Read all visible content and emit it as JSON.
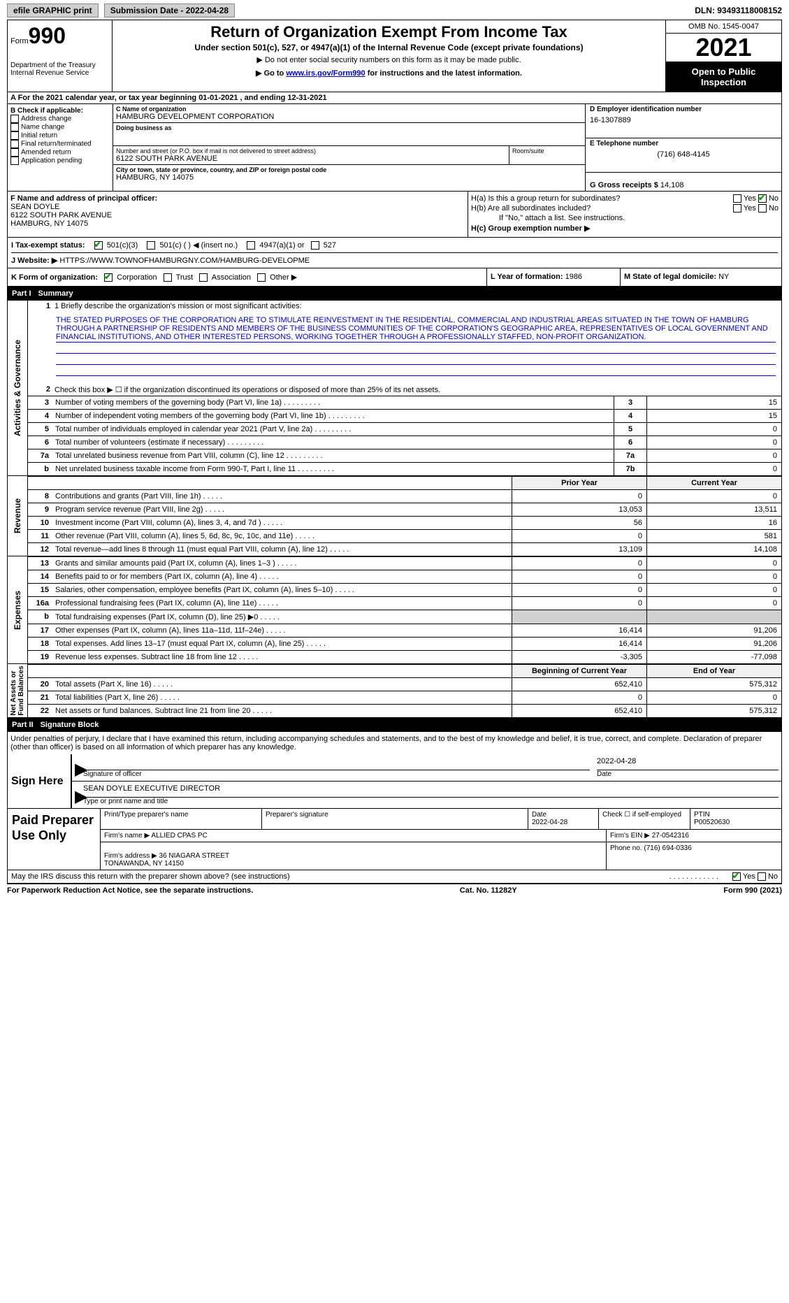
{
  "topbar": {
    "efile": "efile GRAPHIC print",
    "submission": "Submission Date - 2022-04-28",
    "dln_label": "DLN:",
    "dln": "93493118008152"
  },
  "header": {
    "form_prefix": "Form",
    "form_number": "990",
    "dept": "Department of the Treasury\nInternal Revenue Service",
    "title": "Return of Organization Exempt From Income Tax",
    "subtitle": "Under section 501(c), 527, or 4947(a)(1) of the Internal Revenue Code (except private foundations)",
    "note1": "▶ Do not enter social security numbers on this form as it may be made public.",
    "note2_pre": "▶ Go to ",
    "note2_link": "www.irs.gov/Form990",
    "note2_post": " for instructions and the latest information.",
    "omb": "OMB No. 1545-0047",
    "year": "2021",
    "open": "Open to Public\nInspection"
  },
  "line_a": "A For the 2021 calendar year, or tax year beginning 01-01-2021    , and ending 12-31-2021",
  "block_b": {
    "title": "B Check if applicable:",
    "items": [
      "Address change",
      "Name change",
      "Initial return",
      "Final return/terminated",
      "Amended return",
      "Application pending"
    ]
  },
  "block_c": {
    "name_lbl": "C Name of organization",
    "name": "HAMBURG DEVELOPMENT CORPORATION",
    "dba_lbl": "Doing business as",
    "dba": "",
    "street_lbl": "Number and street (or P.O. box if mail is not delivered to street address)",
    "street": "6122 SOUTH PARK AVENUE",
    "room_lbl": "Room/suite",
    "room": "",
    "city_lbl": "City or town, state or province, country, and ZIP or foreign postal code",
    "city": "HAMBURG, NY  14075"
  },
  "block_d": {
    "ein_lbl": "D Employer identification number",
    "ein": "16-1307889",
    "tel_lbl": "E Telephone number",
    "tel": "(716) 648-4145",
    "gross_lbl": "G Gross receipts $",
    "gross": "14,108"
  },
  "block_f": {
    "lbl": "F Name and address of principal officer:",
    "name": "SEAN DOYLE",
    "street": "6122 SOUTH PARK AVENUE",
    "city": "HAMBURG, NY  14075"
  },
  "block_h": {
    "ha": "H(a)  Is this a group return for subordinates?",
    "hb": "H(b)  Are all subordinates included?",
    "hb_note": "If \"No,\" attach a list. See instructions.",
    "hc": "H(c)  Group exemption number ▶"
  },
  "row_i": {
    "lbl": "I  Tax-exempt status:",
    "opts": [
      "501(c)(3)",
      "501(c) (  ) ◀ (insert no.)",
      "4947(a)(1) or",
      "527"
    ]
  },
  "row_j": {
    "lbl": "J  Website: ▶",
    "val": "HTTPS://WWW.TOWNOFHAMBURGNY.COM/HAMBURG-DEVELOPME"
  },
  "row_k": {
    "k": "K Form of organization:",
    "opts": [
      "Corporation",
      "Trust",
      "Association",
      "Other ▶"
    ],
    "l_lbl": "L Year of formation:",
    "l_val": "1986",
    "m_lbl": "M State of legal domicile:",
    "m_val": "NY"
  },
  "part1": {
    "num": "Part I",
    "title": "Summary"
  },
  "summary": {
    "q1_lbl": "1  Briefly describe the organization's mission or most significant activities:",
    "q1_text": "THE STATED PURPOSES OF THE CORPORATION ARE TO STIMULATE REINVESTMENT IN THE RESIDENTIAL, COMMERCIAL AND INDUSTRIAL AREAS SITUATED IN THE TOWN OF HAMBURG THROUGH A PARTNERSHIP OF RESIDENTS AND MEMBERS OF THE BUSINESS COMMUNITIES OF THE CORPORATION'S GEOGRAPHIC AREA, REPRESENTATIVES OF LOCAL GOVERNMENT AND FINANCIAL INSTITUTIONS, AND OTHER INTERESTED PERSONS, WORKING TOGETHER THROUGH A PROFESSIONALLY STAFFED, NON-PROFIT ORGANIZATION.",
    "q2": "Check this box ▶ ☐  if the organization discontinued its operations or disposed of more than 25% of its net assets.",
    "lines_single": [
      {
        "n": "3",
        "t": "Number of voting members of the governing body (Part VI, line 1a)",
        "idx": "3",
        "v": "15"
      },
      {
        "n": "4",
        "t": "Number of independent voting members of the governing body (Part VI, line 1b)",
        "idx": "4",
        "v": "15"
      },
      {
        "n": "5",
        "t": "Total number of individuals employed in calendar year 2021 (Part V, line 2a)",
        "idx": "5",
        "v": "0"
      },
      {
        "n": "6",
        "t": "Total number of volunteers (estimate if necessary)",
        "idx": "6",
        "v": "0"
      },
      {
        "n": "7a",
        "t": "Total unrelated business revenue from Part VIII, column (C), line 12",
        "idx": "7a",
        "v": "0"
      },
      {
        "n": "b",
        "t": "Net unrelated business taxable income from Form 990-T, Part I, line 11",
        "idx": "7b",
        "v": "0"
      }
    ],
    "col_headers": {
      "prior": "Prior Year",
      "current": "Current Year"
    },
    "revenue": [
      {
        "n": "8",
        "t": "Contributions and grants (Part VIII, line 1h)",
        "p": "0",
        "c": "0"
      },
      {
        "n": "9",
        "t": "Program service revenue (Part VIII, line 2g)",
        "p": "13,053",
        "c": "13,511"
      },
      {
        "n": "10",
        "t": "Investment income (Part VIII, column (A), lines 3, 4, and 7d )",
        "p": "56",
        "c": "16"
      },
      {
        "n": "11",
        "t": "Other revenue (Part VIII, column (A), lines 5, 6d, 8c, 9c, 10c, and 11e)",
        "p": "0",
        "c": "581"
      },
      {
        "n": "12",
        "t": "Total revenue—add lines 8 through 11 (must equal Part VIII, column (A), line 12)",
        "p": "13,109",
        "c": "14,108"
      }
    ],
    "expenses": [
      {
        "n": "13",
        "t": "Grants and similar amounts paid (Part IX, column (A), lines 1–3 )",
        "p": "0",
        "c": "0"
      },
      {
        "n": "14",
        "t": "Benefits paid to or for members (Part IX, column (A), line 4)",
        "p": "0",
        "c": "0"
      },
      {
        "n": "15",
        "t": "Salaries, other compensation, employee benefits (Part IX, column (A), lines 5–10)",
        "p": "0",
        "c": "0"
      },
      {
        "n": "16a",
        "t": "Professional fundraising fees (Part IX, column (A), line 11e)",
        "p": "0",
        "c": "0"
      },
      {
        "n": "b",
        "t": "Total fundraising expenses (Part IX, column (D), line 25) ▶0",
        "p": "",
        "c": "",
        "shaded": true
      },
      {
        "n": "17",
        "t": "Other expenses (Part IX, column (A), lines 11a–11d, 11f–24e)",
        "p": "16,414",
        "c": "91,206"
      },
      {
        "n": "18",
        "t": "Total expenses. Add lines 13–17 (must equal Part IX, column (A), line 25)",
        "p": "16,414",
        "c": "91,206"
      },
      {
        "n": "19",
        "t": "Revenue less expenses. Subtract line 18 from line 12",
        "p": "-3,305",
        "c": "-77,098"
      }
    ],
    "net_headers": {
      "begin": "Beginning of Current Year",
      "end": "End of Year"
    },
    "net": [
      {
        "n": "20",
        "t": "Total assets (Part X, line 16)",
        "p": "652,410",
        "c": "575,312"
      },
      {
        "n": "21",
        "t": "Total liabilities (Part X, line 26)",
        "p": "0",
        "c": "0"
      },
      {
        "n": "22",
        "t": "Net assets or fund balances. Subtract line 21 from line 20",
        "p": "652,410",
        "c": "575,312"
      }
    ]
  },
  "part2": {
    "num": "Part II",
    "title": "Signature Block"
  },
  "sig": {
    "declaration": "Under penalties of perjury, I declare that I have examined this return, including accompanying schedules and statements, and to the best of my knowledge and belief, it is true, correct, and complete. Declaration of preparer (other than officer) is based on all information of which preparer has any knowledge.",
    "sign_here": "Sign Here",
    "sig_officer_lbl": "Signature of officer",
    "date": "2022-04-28",
    "date_lbl": "Date",
    "officer_name": "SEAN DOYLE  EXECUTIVE DIRECTOR",
    "officer_lbl": "Type or print name and title"
  },
  "prep": {
    "label": "Paid Preparer Use Only",
    "name_lbl": "Print/Type preparer's name",
    "name": "",
    "sig_lbl": "Preparer's signature",
    "date_lbl": "Date",
    "date": "2022-04-28",
    "check_lbl": "Check ☐ if self-employed",
    "ptin_lbl": "PTIN",
    "ptin": "P00520630",
    "firm_name_lbl": "Firm's name    ▶",
    "firm_name": "ALLIED CPAS PC",
    "firm_ein_lbl": "Firm's EIN ▶",
    "firm_ein": "27-0542316",
    "firm_addr_lbl": "Firm's address ▶",
    "firm_addr": "36 NIAGARA STREET\nTONAWANDA, NY  14150",
    "phone_lbl": "Phone no.",
    "phone": "(716) 694-0336"
  },
  "footer": {
    "discuss": "May the IRS discuss this return with the preparer shown above? (see instructions)",
    "notice": "For Paperwork Reduction Act Notice, see the separate instructions.",
    "cat": "Cat. No. 11282Y",
    "form": "Form 990 (2021)"
  },
  "colors": {
    "link": "#0000cc",
    "check": "#00a000",
    "shade": "#d0d0d0"
  }
}
